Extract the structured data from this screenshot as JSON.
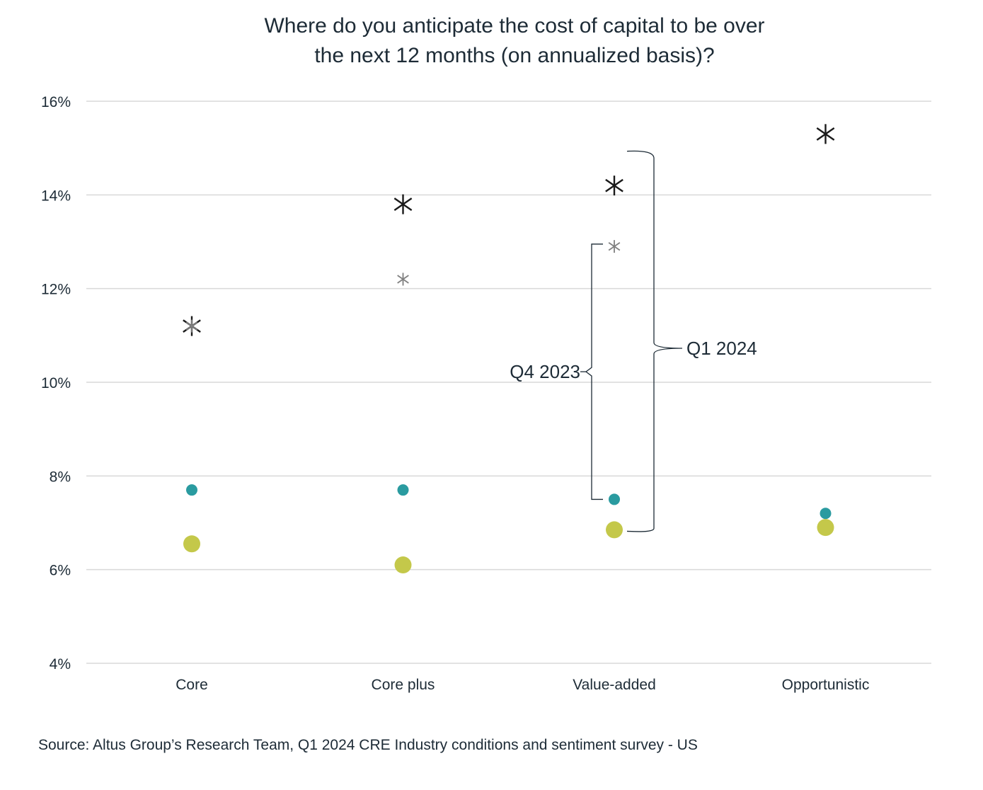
{
  "chart_data": {
    "type": "scatter",
    "title_lines": [
      "Where do you anticipate the cost of capital to be over",
      "the next 12 months (on annualized basis)?"
    ],
    "xlabel": "",
    "ylabel": "",
    "categories": [
      "Core",
      "Core plus",
      "Value-added",
      "Opportunistic"
    ],
    "yticks": [
      "4%",
      "6%",
      "8%",
      "10%",
      "12%",
      "14%",
      "16%"
    ],
    "ylim": [
      4,
      16
    ],
    "grid": true,
    "series": [
      {
        "marker": "star",
        "color": "#1a1a1a",
        "values": [
          11.2,
          13.8,
          14.2,
          15.3
        ]
      },
      {
        "marker": "star-small",
        "color": "#808080",
        "values": [
          11.2,
          12.2,
          12.9,
          null
        ]
      },
      {
        "marker": "dot-small",
        "color": "#2a9ba0",
        "values": [
          7.7,
          7.7,
          7.5,
          7.2
        ]
      },
      {
        "marker": "dot-large",
        "color": "#c4c84a",
        "values": [
          6.55,
          6.1,
          6.85,
          6.9
        ]
      }
    ],
    "annotations": [
      {
        "text": "Q4 2023",
        "category": "Value-added",
        "range": [
          7.5,
          12.9
        ]
      },
      {
        "text": "Q1 2024",
        "category": "Value-added",
        "range": [
          6.85,
          14.2
        ]
      }
    ],
    "source": "Source: Altus Group’s Research Team, Q1 2024 CRE Industry conditions and sentiment survey - US"
  }
}
